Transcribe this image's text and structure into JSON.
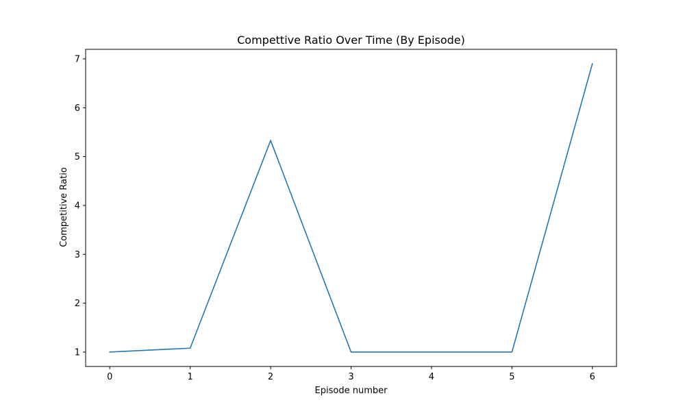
{
  "chart_data": {
    "type": "line",
    "title": "Compettive Ratio Over Time (By Episode)",
    "xlabel": "Episode number",
    "ylabel": "Competitive Ratio",
    "x": [
      0,
      1,
      2,
      3,
      4,
      5,
      6
    ],
    "series": [
      {
        "values": [
          1.0,
          1.08,
          5.33,
          1.0,
          1.0,
          1.0,
          6.9
        ],
        "color": "#1f77b4"
      }
    ],
    "xlim": [
      -0.3,
      6.3
    ],
    "ylim": [
      0.705,
      7.195
    ],
    "xticks": [
      0,
      1,
      2,
      3,
      4,
      5,
      6
    ],
    "yticks": [
      1,
      2,
      3,
      4,
      5,
      6,
      7
    ],
    "grid": false,
    "legend": "none"
  }
}
